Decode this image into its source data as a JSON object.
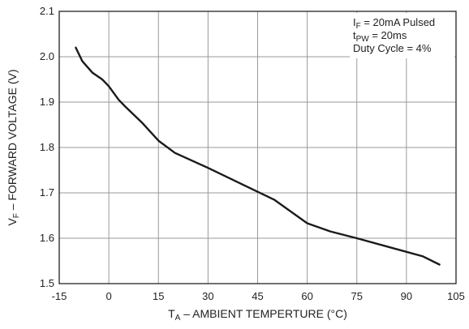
{
  "chart_data": {
    "type": "line",
    "xlabel": {
      "main": "T",
      "sub": "A",
      "rest": " – AMBIENT TEMPERTURE (°C)"
    },
    "ylabel": {
      "main": "V",
      "sub": "F",
      "rest": "  –  FORWARD VOLTAGE (V)"
    },
    "xlim": [
      -15,
      105
    ],
    "ylim": [
      1.5,
      2.1
    ],
    "xticks": [
      "-15",
      "0",
      "15",
      "30",
      "45",
      "60",
      "75",
      "90",
      "105"
    ],
    "yticks": [
      "1.5",
      "1.6",
      "1.7",
      "1.8",
      "1.9",
      "2.0",
      "2.1"
    ],
    "grid": true,
    "annotations": [
      {
        "main": "I",
        "sub": "F",
        "rest": " = 20mA Pulsed"
      },
      {
        "main": "t",
        "sub": "PW",
        "rest": " = 20ms"
      },
      {
        "main": "Duty Cycle = 4%",
        "sub": "",
        "rest": ""
      }
    ],
    "series": [
      {
        "x": [
          -10,
          -8,
          -5,
          -2,
          0,
          3,
          5,
          10,
          15,
          20,
          30,
          40,
          50,
          60,
          67,
          75,
          85,
          95,
          100
        ],
        "y": [
          2.02,
          1.99,
          1.965,
          1.95,
          1.935,
          1.905,
          1.89,
          1.855,
          1.815,
          1.788,
          1.755,
          1.72,
          1.685,
          1.633,
          1.615,
          1.6,
          1.58,
          1.56,
          1.542
        ]
      }
    ]
  }
}
